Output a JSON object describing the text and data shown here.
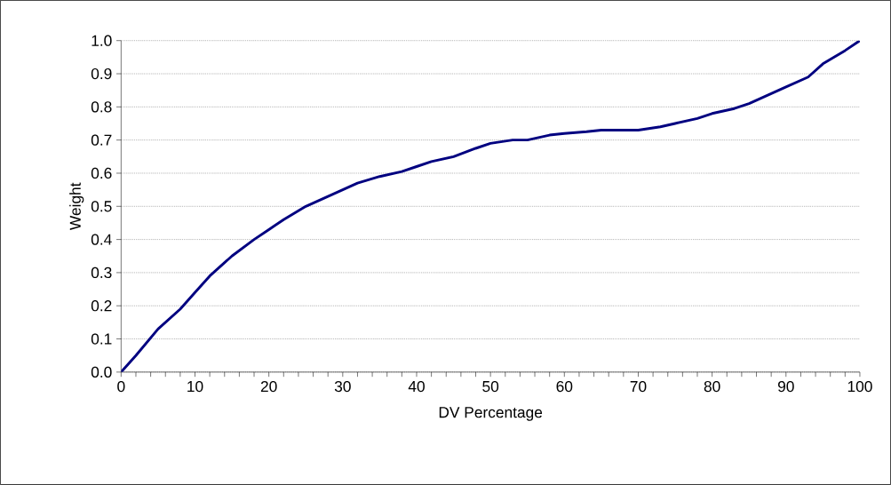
{
  "chart_data": {
    "type": "line",
    "xlabel": "DV Percentage",
    "ylabel": "Weight",
    "x": [
      0,
      2,
      5,
      8,
      10,
      12,
      15,
      18,
      20,
      22,
      25,
      28,
      30,
      32,
      35,
      38,
      40,
      42,
      45,
      48,
      50,
      53,
      55,
      58,
      60,
      63,
      65,
      68,
      70,
      73,
      75,
      78,
      80,
      83,
      85,
      88,
      90,
      93,
      95,
      98,
      100
    ],
    "series": [
      {
        "color": "#000080",
        "values": [
          0.0,
          0.05,
          0.13,
          0.19,
          0.24,
          0.29,
          0.35,
          0.4,
          0.43,
          0.46,
          0.5,
          0.53,
          0.55,
          0.57,
          0.59,
          0.605,
          0.62,
          0.635,
          0.65,
          0.675,
          0.69,
          0.7,
          0.7,
          0.715,
          0.72,
          0.725,
          0.73,
          0.73,
          0.73,
          0.74,
          0.75,
          0.765,
          0.78,
          0.795,
          0.81,
          0.84,
          0.86,
          0.89,
          0.93,
          0.97,
          1.0
        ]
      }
    ],
    "xlim": [
      0,
      100
    ],
    "ylim": [
      0,
      1.0
    ],
    "xticks": [
      0,
      {
        "value": 2,
        "label": null
      },
      {
        "value": 4,
        "label": null
      },
      {
        "value": 6,
        "label": null
      },
      {
        "value": 8,
        "label": null
      },
      10,
      {
        "value": 12,
        "label": null
      },
      {
        "value": 14,
        "label": null
      },
      {
        "value": 16,
        "label": null
      },
      {
        "value": 18,
        "label": null
      },
      20,
      {
        "value": 22,
        "label": null
      },
      {
        "value": 24,
        "label": null
      },
      {
        "value": 26,
        "label": null
      },
      {
        "value": 28,
        "label": null
      },
      30,
      {
        "value": 32,
        "label": null
      },
      {
        "value": 34,
        "label": null
      },
      {
        "value": 36,
        "label": null
      },
      {
        "value": 38,
        "label": null
      },
      40,
      {
        "value": 42,
        "label": null
      },
      {
        "value": 44,
        "label": null
      },
      {
        "value": 46,
        "label": null
      },
      {
        "value": 48,
        "label": null
      },
      50,
      {
        "value": 52,
        "label": null
      },
      {
        "value": 54,
        "label": null
      },
      {
        "value": 56,
        "label": null
      },
      {
        "value": 58,
        "label": null
      },
      60,
      {
        "value": 62,
        "label": null
      },
      {
        "value": 64,
        "label": null
      },
      {
        "value": 66,
        "label": null
      },
      {
        "value": 68,
        "label": null
      },
      70,
      {
        "value": 72,
        "label": null
      },
      {
        "value": 74,
        "label": null
      },
      {
        "value": 76,
        "label": null
      },
      {
        "value": 78,
        "label": null
      },
      80,
      {
        "value": 82,
        "label": null
      },
      {
        "value": 84,
        "label": null
      },
      {
        "value": 86,
        "label": null
      },
      {
        "value": 88,
        "label": null
      },
      90,
      {
        "value": 92,
        "label": null
      },
      {
        "value": 94,
        "label": null
      },
      {
        "value": 96,
        "label": null
      },
      {
        "value": 98,
        "label": null
      },
      100
    ],
    "yticks": [
      {
        "value": 0,
        "label": "0.0"
      },
      0.1,
      0.2,
      0.3,
      0.4,
      0.5,
      0.6,
      0.7,
      0.8,
      0.9,
      {
        "value": 1.0,
        "label": "1.0"
      }
    ],
    "grid": "y",
    "marker": "none",
    "line_style": "solid"
  }
}
